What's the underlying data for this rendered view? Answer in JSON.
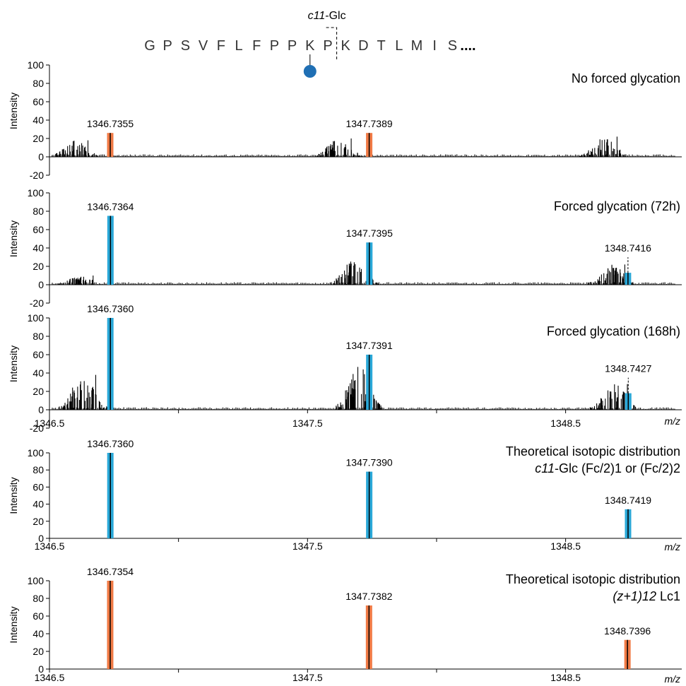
{
  "header": {
    "site_label": "c11",
    "site_label_suffix": "-Glc",
    "sequence": [
      "G",
      "P",
      "S",
      "V",
      "F",
      "L",
      "F",
      "P",
      "P",
      "K",
      "P",
      "K",
      "D",
      "T",
      "L",
      "M",
      "I",
      "S"
    ],
    "sequence_ellipsis": "....",
    "glycated_residue_index": 9,
    "cleavage_after_index": 10,
    "glycan_color": "#1f6fb4"
  },
  "colors": {
    "observed_orange": "#f07a45",
    "observed_blue": "#2aa8d8",
    "line": "#000000"
  },
  "chart_data": [
    {
      "type": "bar",
      "title": "No forced glycation",
      "ylabel": "Intensity",
      "ylim": [
        -20,
        100
      ],
      "yticks": [
        "-20",
        "0",
        "20",
        "40",
        "60",
        "80",
        "100"
      ],
      "xlim": [
        1346.5,
        1348.95
      ],
      "highlight_color": "#f07a45",
      "peaks": [
        {
          "x": 1346.7355,
          "y": 26,
          "label": "1346.7355"
        },
        {
          "x": 1347.7389,
          "y": 26,
          "label": "1347.7389"
        }
      ],
      "noise_clusters": [
        {
          "center": 1346.6,
          "max": 18
        },
        {
          "center": 1347.62,
          "max": 20
        },
        {
          "center": 1348.65,
          "max": 22
        }
      ]
    },
    {
      "type": "bar",
      "title": "Forced glycation (72h)",
      "ylabel": "Intensity",
      "ylim": [
        -20,
        100
      ],
      "yticks": [
        "-20",
        "0",
        "20",
        "40",
        "60",
        "80",
        "100"
      ],
      "xlim": [
        1346.5,
        1348.95
      ],
      "highlight_color": "#2aa8d8",
      "peaks": [
        {
          "x": 1346.7364,
          "y": 75,
          "label": "1346.7364"
        },
        {
          "x": 1347.7395,
          "y": 46,
          "label": "1347.7395"
        },
        {
          "x": 1348.7416,
          "y": 13,
          "label": "1348.7416"
        }
      ],
      "noise_clusters": [
        {
          "center": 1346.62,
          "max": 10
        },
        {
          "center": 1347.68,
          "max": 27
        },
        {
          "center": 1348.68,
          "max": 22
        }
      ]
    },
    {
      "type": "bar",
      "title": "Forced glycation (168h)",
      "ylabel": "Intensity",
      "ylim": [
        -20,
        100
      ],
      "yticks": [
        "-20",
        "0",
        "20",
        "40",
        "60",
        "80",
        "100"
      ],
      "xlim": [
        1346.5,
        1348.95
      ],
      "xticks": [
        "1346.5",
        "1347.5",
        "1348.5"
      ],
      "xlabel": "m/z",
      "highlight_color": "#2aa8d8",
      "peaks": [
        {
          "x": 1346.736,
          "y": 100,
          "label": "1346.7360"
        },
        {
          "x": 1347.7391,
          "y": 60,
          "label": "1347.7391"
        },
        {
          "x": 1348.7427,
          "y": 18,
          "label": "1348.7427"
        }
      ],
      "noise_clusters": [
        {
          "center": 1346.63,
          "max": 38
        },
        {
          "center": 1347.7,
          "max": 47
        },
        {
          "center": 1348.69,
          "max": 28
        }
      ]
    },
    {
      "type": "bar",
      "title": "Theoretical isotopic distribution",
      "subtitle_italic": "c11",
      "subtitle_rest": "-Glc (Fc/2)1 or (Fc/2)2",
      "ylabel": "Intensity",
      "ylim": [
        0,
        100
      ],
      "yticks": [
        "0",
        "20",
        "40",
        "60",
        "80",
        "100"
      ],
      "xlim": [
        1346.5,
        1348.95
      ],
      "xticks": [
        "1346.5",
        "1347.5",
        "1348.5"
      ],
      "xlabel": "m/z",
      "highlight_color": "#2aa8d8",
      "peaks": [
        {
          "x": 1346.736,
          "y": 100,
          "label": "1346.7360"
        },
        {
          "x": 1347.739,
          "y": 78,
          "label": "1347.7390"
        },
        {
          "x": 1348.7419,
          "y": 34,
          "label": "1348.7419"
        }
      ]
    },
    {
      "type": "bar",
      "title": "Theoretical isotopic distribution",
      "subtitle_italic": "(z+1)12",
      "subtitle_rest": " Lc1",
      "ylabel": "Intensity",
      "ylim": [
        0,
        100
      ],
      "yticks": [
        "0",
        "20",
        "40",
        "60",
        "80",
        "100"
      ],
      "xlim": [
        1346.5,
        1348.95
      ],
      "xticks": [
        "1346.5",
        "1347.5",
        "1348.5"
      ],
      "xlabel": "m/z",
      "highlight_color": "#f07a45",
      "peaks": [
        {
          "x": 1346.7354,
          "y": 100,
          "label": "1346.7354"
        },
        {
          "x": 1347.7382,
          "y": 72,
          "label": "1347.7382"
        },
        {
          "x": 1348.7396,
          "y": 33,
          "label": "1348.7396"
        }
      ]
    }
  ]
}
